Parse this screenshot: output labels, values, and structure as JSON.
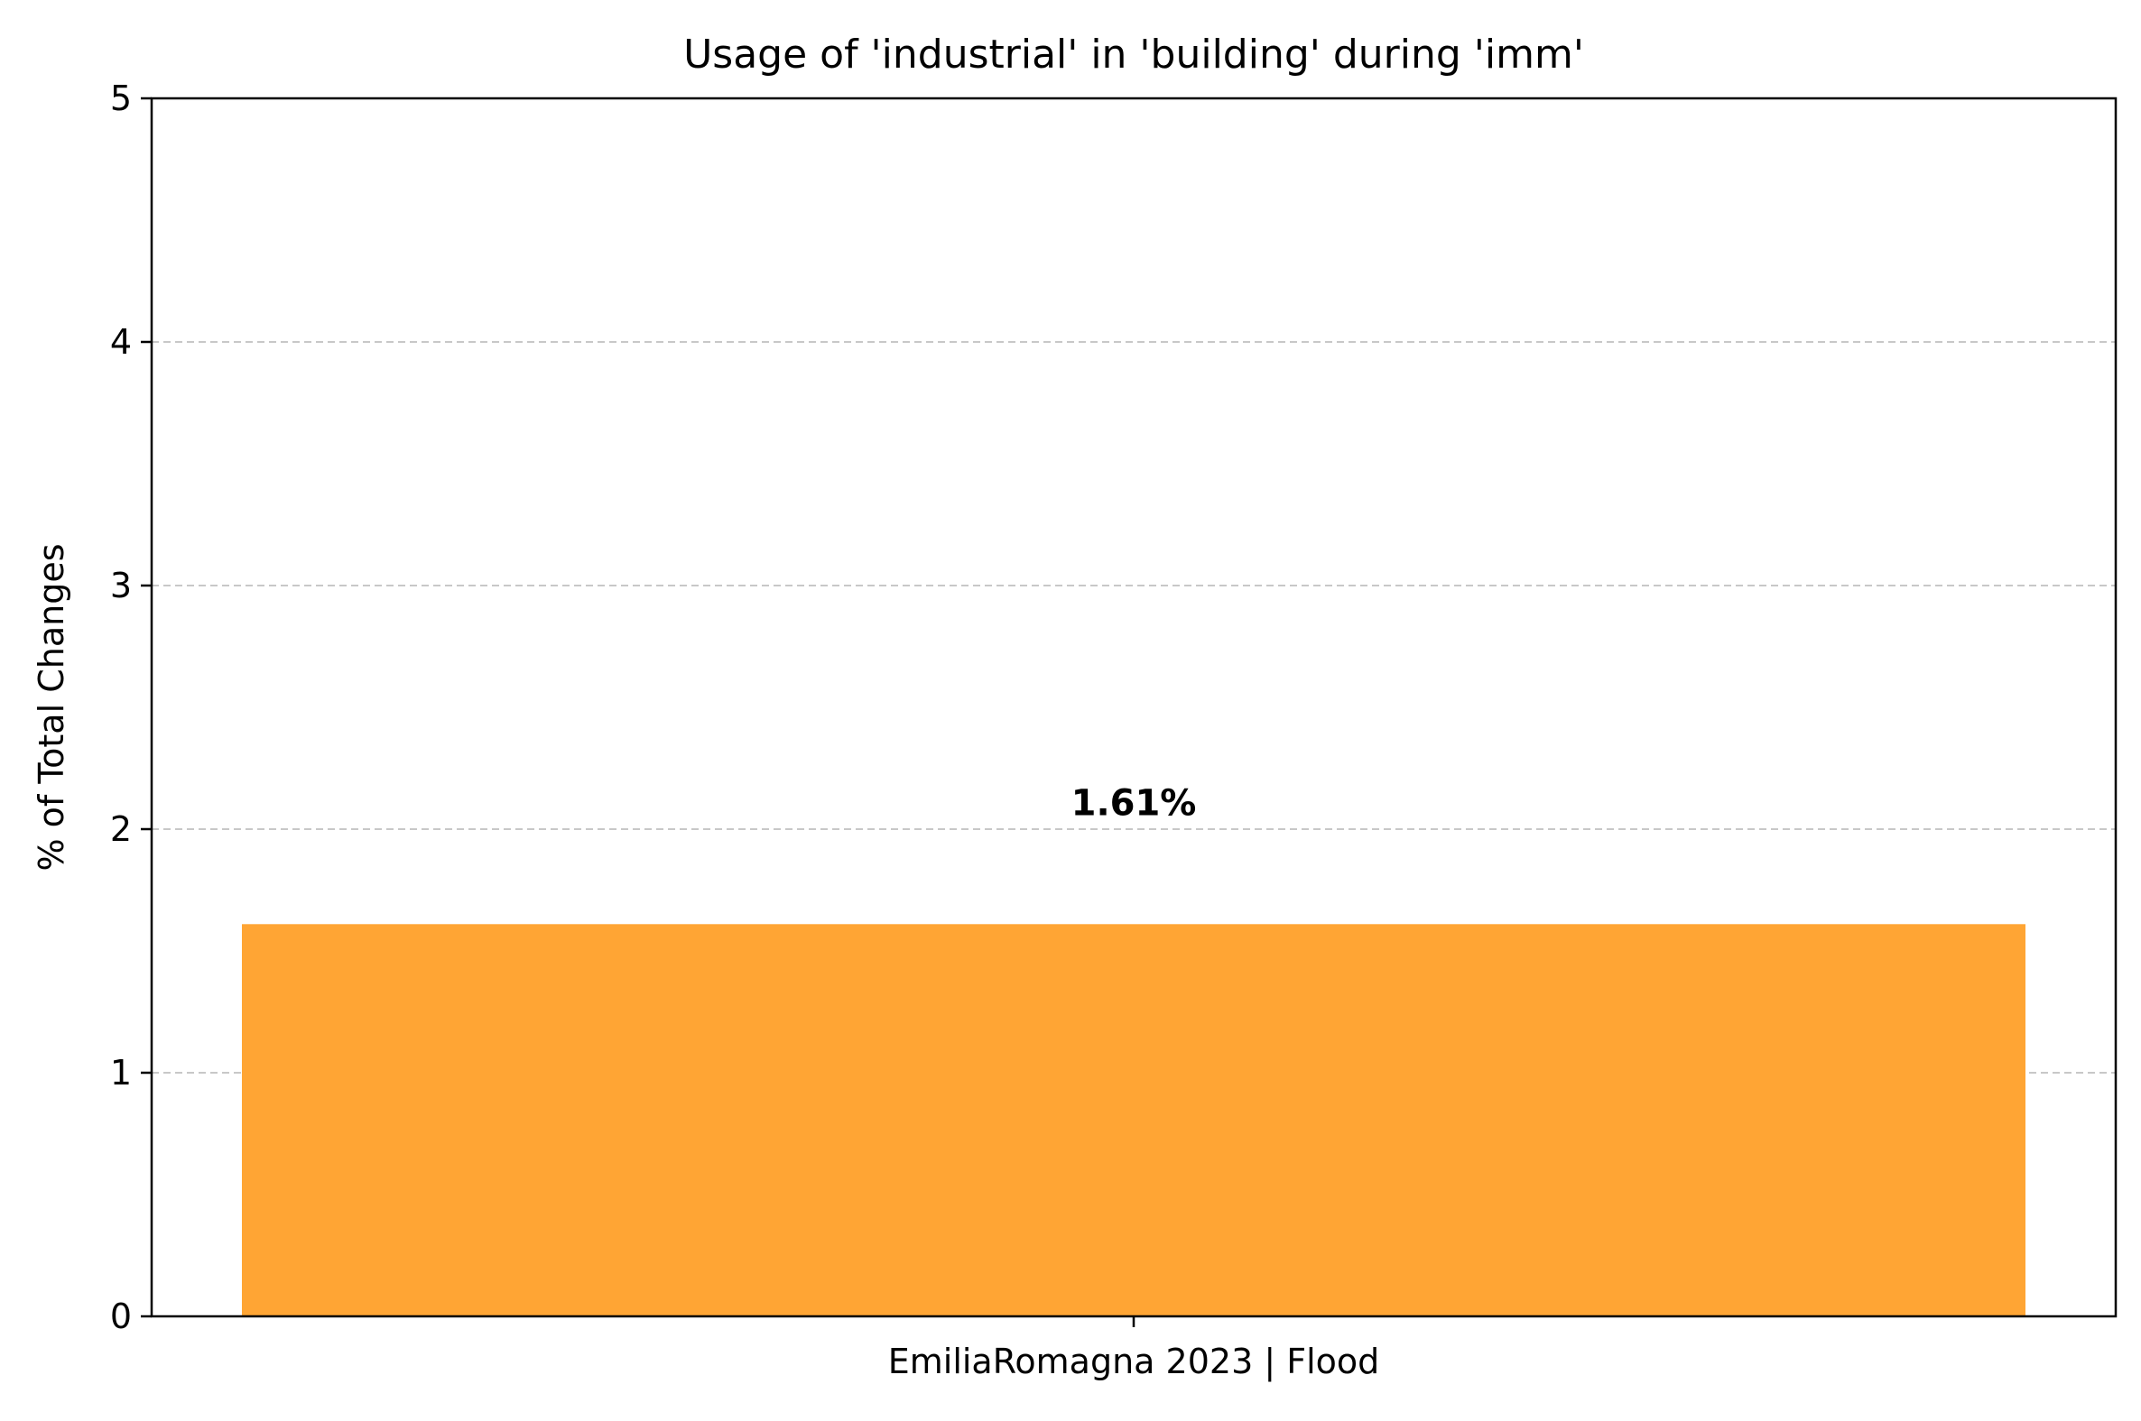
{
  "chart_data": {
    "type": "bar",
    "title": "Usage of 'industrial' in 'building' during 'imm'",
    "xlabel": "",
    "ylabel": "% of Total Changes",
    "categories": [
      "EmiliaRomagna 2023 | Flood"
    ],
    "values": [
      1.61
    ],
    "data_labels": [
      "1.61%"
    ],
    "ylim": [
      0,
      5
    ],
    "yticks": [
      0,
      1,
      2,
      3,
      4,
      5
    ],
    "ytick_labels": [
      "0",
      "1",
      "2",
      "3",
      "4",
      "5"
    ],
    "grid": "y, dashed",
    "legend": "none",
    "colors": {
      "bar": "#FFA534",
      "grid": "#c8c8c8",
      "axis": "#000000"
    }
  }
}
